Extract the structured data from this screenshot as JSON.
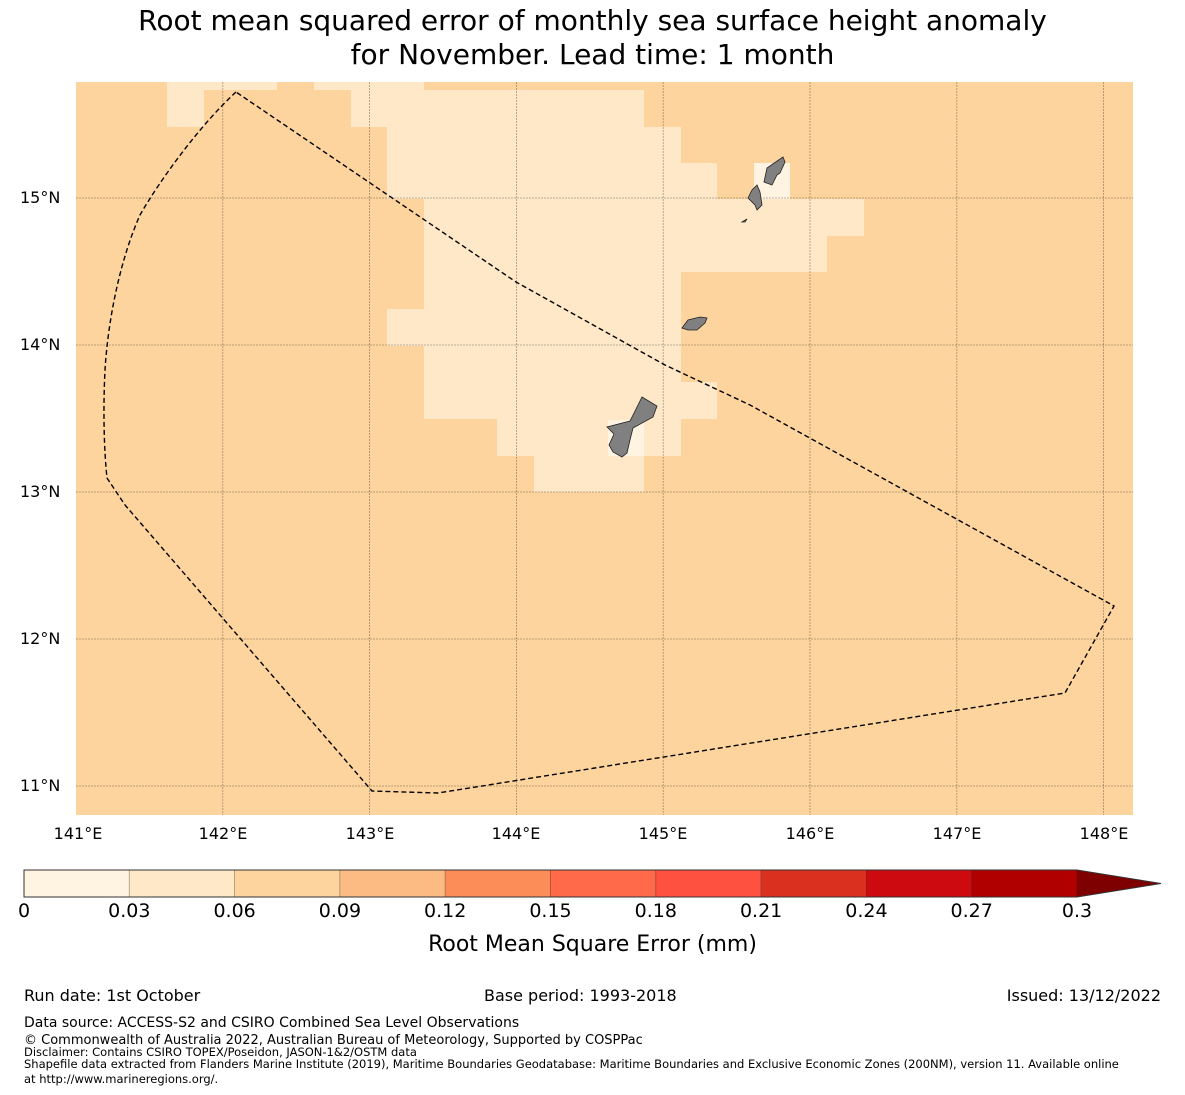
{
  "title": {
    "line1": "Root mean squared error of monthly sea surface height anomaly",
    "line2": "for November. Lead time: 1 month"
  },
  "axes": {
    "lat_labels": [
      "15°N",
      "14°N",
      "13°N",
      "12°N",
      "11°N"
    ],
    "lon_labels": [
      "141°E",
      "142°E",
      "143°E",
      "144°E",
      "145°E",
      "146°E",
      "147°E",
      "148°E"
    ]
  },
  "colors": {
    "base": "#fdd49e",
    "light": "#fee8c8",
    "lightest": "#fff3e1",
    "land": "#808080"
  },
  "colorbar": {
    "ticks": [
      "0",
      "0.03",
      "0.06",
      "0.09",
      "0.12",
      "0.15",
      "0.18",
      "0.21",
      "0.24",
      "0.27",
      "0.3"
    ],
    "colors": [
      "#fff3e1",
      "#fee8c8",
      "#fdd49e",
      "#fdbb84",
      "#fc8d59",
      "#fe6a4a",
      "#ff5040",
      "#d93020",
      "#cc0a0f",
      "#b00000"
    ],
    "extend_color": "#7f0000",
    "label": "Root Mean Square Error (mm)"
  },
  "footer": {
    "run_date": "Run date: 1st October",
    "base_period": "Base period: 1993-2018",
    "issued": "Issued: 13/12/2022",
    "data_source": "Data source: ACCESS-S2 and CSIRO Combined Sea Level Observations",
    "copyright": "© Commonwealth of Australia 2022, Australian Bureau of Meteorology, Supported by COSPPac",
    "disclaimer": "Disclaimer: Contains CSIRO TOPEX/Poseidon, JASON-1&2/OSTM data",
    "shapefile": "Shapefile data extracted from Flanders Marine Institute (2019), Maritime Boundaries Geodatabase: Maritime Boundaries and Exclusive Economic Zones (200NM), version 11. Available online",
    "shapefile2": "at http://www.marineregions.org/."
  }
}
